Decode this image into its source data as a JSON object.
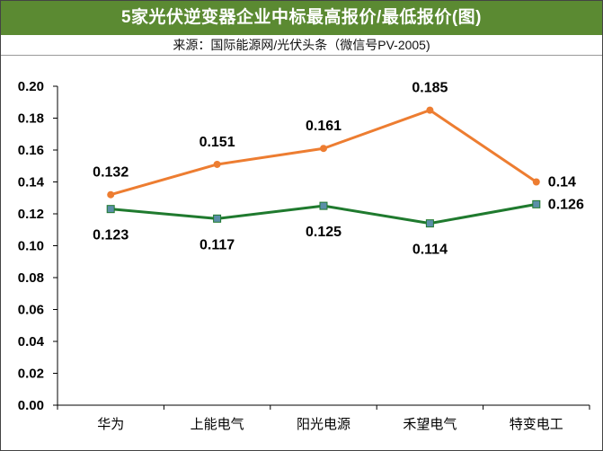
{
  "header": {
    "title": "5家光伏逆变器企业中标最高报价/最低报价(图)",
    "source": "来源：国际能源网/光伏头条（微信号PV-2005)"
  },
  "colors": {
    "title_bg": "#5b8a32",
    "high_line": "#ed7d31",
    "low_line": "#1f7a2e",
    "low_marker": "#5b8fa8"
  },
  "chart_data": {
    "type": "line",
    "categories": [
      "华为",
      "上能电气",
      "阳光电源",
      "禾望电气",
      "特变电工"
    ],
    "series": [
      {
        "key": "high",
        "values": [
          0.132,
          0.151,
          0.161,
          0.185,
          0.14
        ],
        "labels": [
          "0.132",
          "0.151",
          "0.161",
          "0.185",
          "0.14"
        ]
      },
      {
        "key": "low",
        "values": [
          0.123,
          0.117,
          0.125,
          0.114,
          0.126
        ],
        "labels": [
          "0.123",
          "0.117",
          "0.125",
          "0.114",
          "0.126"
        ]
      }
    ],
    "ylim": [
      0,
      0.2
    ],
    "yticks": [
      "0.00",
      "0.02",
      "0.04",
      "0.06",
      "0.08",
      "0.10",
      "0.12",
      "0.14",
      "0.16",
      "0.18",
      "0.20"
    ],
    "grid": false,
    "legend": "none"
  }
}
